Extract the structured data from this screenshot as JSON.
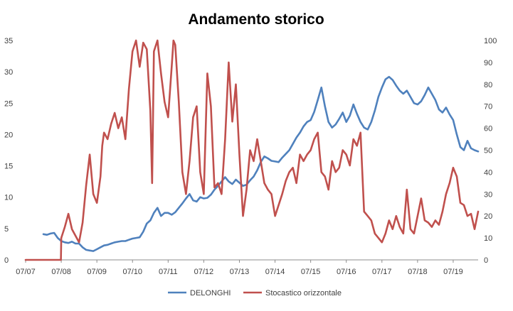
{
  "chart_data": {
    "type": "line",
    "title": "Andamento storico",
    "x_tick_labels": [
      "07/07",
      "07/08",
      "07/09",
      "07/10",
      "07/11",
      "07/12",
      "07/13",
      "07/14",
      "07/15",
      "07/16",
      "07/17",
      "07/18",
      "07/19"
    ],
    "y_left": {
      "ylim": [
        0,
        35
      ],
      "ticks": [
        0,
        5,
        10,
        15,
        20,
        25,
        30,
        35
      ]
    },
    "y_right": {
      "ylim": [
        0,
        100
      ],
      "ticks": [
        0,
        10,
        20,
        30,
        40,
        50,
        60,
        70,
        80,
        90,
        100
      ]
    },
    "grid": false,
    "legend_position": "bottom",
    "series": [
      {
        "name": "DELONGHI",
        "axis": "left",
        "color": "#4F81BD",
        "x": [
          2007.5,
          2007.6,
          2007.7,
          2007.8,
          2007.9,
          2008.0,
          2008.1,
          2008.2,
          2008.3,
          2008.4,
          2008.5,
          2008.6,
          2008.7,
          2008.8,
          2008.9,
          2009.0,
          2009.1,
          2009.2,
          2009.3,
          2009.4,
          2009.5,
          2009.6,
          2009.7,
          2009.8,
          2009.9,
          2010.0,
          2010.1,
          2010.2,
          2010.3,
          2010.4,
          2010.5,
          2010.6,
          2010.7,
          2010.8,
          2010.9,
          2011.0,
          2011.1,
          2011.2,
          2011.3,
          2011.4,
          2011.5,
          2011.6,
          2011.7,
          2011.8,
          2011.9,
          2012.0,
          2012.1,
          2012.2,
          2012.3,
          2012.4,
          2012.5,
          2012.6,
          2012.7,
          2012.8,
          2012.9,
          2013.0,
          2013.1,
          2013.2,
          2013.3,
          2013.4,
          2013.5,
          2013.6,
          2013.7,
          2013.8,
          2013.9,
          2014.0,
          2014.1,
          2014.2,
          2014.3,
          2014.4,
          2014.5,
          2014.6,
          2014.7,
          2014.8,
          2014.9,
          2015.0,
          2015.1,
          2015.2,
          2015.3,
          2015.4,
          2015.5,
          2015.6,
          2015.7,
          2015.8,
          2015.9,
          2016.0,
          2016.1,
          2016.2,
          2016.3,
          2016.4,
          2016.5,
          2016.6,
          2016.7,
          2016.8,
          2016.9,
          2017.0,
          2017.1,
          2017.2,
          2017.3,
          2017.4,
          2017.5,
          2017.6,
          2017.7,
          2017.8,
          2017.9,
          2018.0,
          2018.1,
          2018.2,
          2018.3,
          2018.4,
          2018.5,
          2018.6,
          2018.7,
          2018.8,
          2018.9,
          2019.0,
          2019.1,
          2019.2,
          2019.3,
          2019.4,
          2019.5,
          2019.6,
          2019.7
        ],
        "values": [
          4.1,
          4.0,
          4.2,
          4.3,
          3.5,
          3.0,
          2.8,
          2.7,
          2.9,
          2.6,
          2.6,
          2.0,
          1.6,
          1.5,
          1.4,
          1.7,
          2.0,
          2.3,
          2.4,
          2.6,
          2.8,
          2.9,
          3.0,
          3.0,
          3.2,
          3.4,
          3.5,
          3.6,
          4.5,
          5.8,
          6.3,
          7.5,
          8.3,
          7.0,
          7.5,
          7.5,
          7.2,
          7.6,
          8.3,
          9.0,
          9.8,
          10.5,
          9.5,
          9.3,
          10.0,
          9.8,
          9.9,
          10.4,
          11.2,
          11.8,
          12.5,
          13.2,
          12.5,
          12.1,
          12.8,
          12.3,
          11.8,
          12.0,
          12.7,
          13.3,
          14.3,
          15.6,
          16.5,
          16.2,
          15.8,
          15.7,
          15.6,
          16.3,
          16.9,
          17.5,
          18.5,
          19.5,
          20.3,
          21.3,
          22.0,
          22.3,
          23.6,
          25.5,
          27.5,
          24.5,
          22.0,
          21.1,
          21.6,
          22.5,
          23.5,
          22.0,
          23.0,
          24.8,
          23.3,
          22.0,
          21.1,
          20.8,
          22.0,
          23.8,
          26.0,
          27.5,
          28.8,
          29.2,
          28.7,
          27.8,
          27.0,
          26.5,
          27.0,
          26.0,
          25.0,
          24.8,
          25.3,
          26.3,
          27.5,
          26.5,
          25.5,
          24.0,
          23.5,
          24.3,
          23.2,
          22.3,
          20.0,
          18.0,
          17.5,
          19.0,
          17.8,
          17.5,
          17.3
        ]
      },
      {
        "name": "Stocastico orizzontale",
        "axis": "right",
        "color": "#C0504D",
        "x": [
          2007.0,
          2007.5,
          2007.99,
          2008.0,
          2008.1,
          2008.2,
          2008.3,
          2008.4,
          2008.5,
          2008.6,
          2008.7,
          2008.8,
          2008.9,
          2009.0,
          2009.1,
          2009.15,
          2009.2,
          2009.3,
          2009.4,
          2009.5,
          2009.6,
          2009.7,
          2009.8,
          2009.9,
          2010.0,
          2010.1,
          2010.2,
          2010.3,
          2010.4,
          2010.5,
          2010.55,
          2010.6,
          2010.7,
          2010.8,
          2010.9,
          2011.0,
          2011.1,
          2011.15,
          2011.2,
          2011.3,
          2011.4,
          2011.5,
          2011.6,
          2011.7,
          2011.8,
          2011.9,
          2012.0,
          2012.1,
          2012.2,
          2012.3,
          2012.4,
          2012.5,
          2012.6,
          2012.7,
          2012.8,
          2012.9,
          2013.0,
          2013.1,
          2013.2,
          2013.3,
          2013.4,
          2013.5,
          2013.6,
          2013.7,
          2013.8,
          2013.9,
          2014.0,
          2014.1,
          2014.2,
          2014.3,
          2014.4,
          2014.5,
          2014.6,
          2014.7,
          2014.8,
          2014.9,
          2015.0,
          2015.1,
          2015.2,
          2015.3,
          2015.4,
          2015.5,
          2015.6,
          2015.7,
          2015.8,
          2015.9,
          2016.0,
          2016.1,
          2016.2,
          2016.3,
          2016.4,
          2016.5,
          2016.6,
          2016.7,
          2016.8,
          2016.9,
          2017.0,
          2017.1,
          2017.2,
          2017.3,
          2017.4,
          2017.5,
          2017.6,
          2017.7,
          2017.8,
          2017.9,
          2018.0,
          2018.1,
          2018.2,
          2018.3,
          2018.4,
          2018.5,
          2018.6,
          2018.7,
          2018.8,
          2018.9,
          2019.0,
          2019.1,
          2019.2,
          2019.3,
          2019.4,
          2019.5,
          2019.6,
          2019.7
        ],
        "values": [
          0,
          0,
          0,
          10,
          15,
          21,
          14,
          11,
          8,
          17,
          34,
          48,
          30,
          26,
          38,
          52,
          58,
          55,
          62,
          67,
          60,
          65,
          55,
          78,
          95,
          100,
          88,
          99,
          96,
          68,
          35,
          95,
          100,
          85,
          72,
          65,
          88,
          100,
          98,
          72,
          40,
          30,
          45,
          65,
          70,
          40,
          30,
          85,
          70,
          33,
          35,
          30,
          55,
          90,
          63,
          80,
          48,
          20,
          32,
          50,
          45,
          55,
          45,
          35,
          32,
          30,
          20,
          25,
          30,
          36,
          40,
          42,
          35,
          48,
          45,
          48,
          50,
          55,
          58,
          40,
          38,
          32,
          45,
          40,
          42,
          50,
          48,
          43,
          55,
          52,
          58,
          22,
          20,
          18,
          12,
          10,
          8,
          12,
          18,
          14,
          20,
          15,
          12,
          32,
          14,
          12,
          20,
          28,
          18,
          17,
          15,
          18,
          16,
          22,
          30,
          35,
          42,
          38,
          26,
          25,
          20,
          21,
          14,
          22
        ]
      }
    ]
  }
}
